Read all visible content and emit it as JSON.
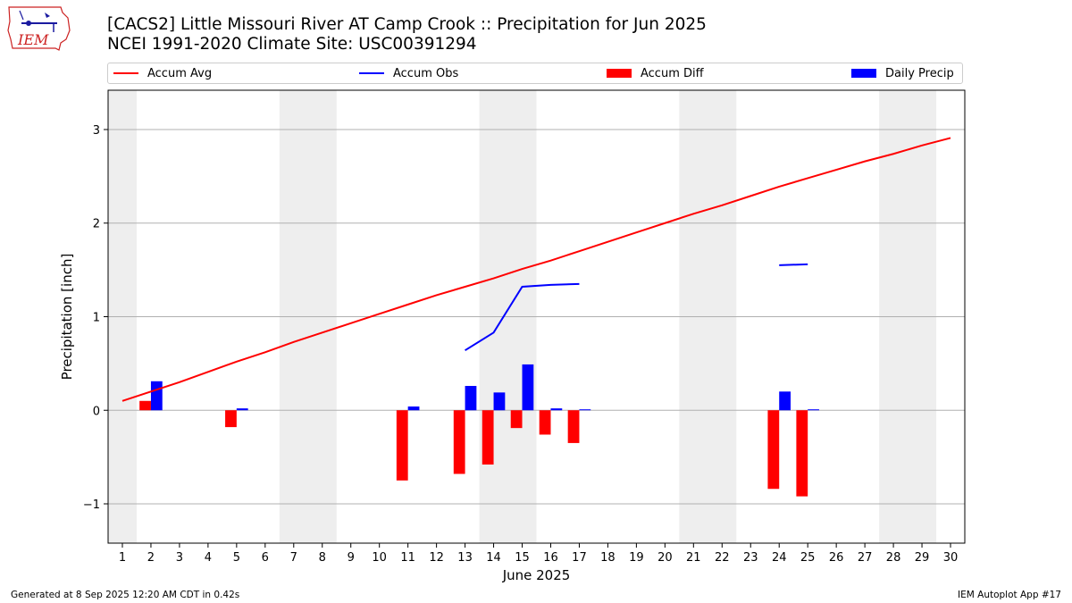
{
  "title_line1": "[CACS2] Little Missouri River  AT Camp Crook :: Precipitation for Jun 2025",
  "title_line2": "NCEI 1991-2020 Climate Site: USC00391294",
  "logo_text": "IEM",
  "legend": {
    "accum_avg": "Accum Avg",
    "accum_obs": "Accum Obs",
    "accum_diff": "Accum Diff",
    "daily_precip": "Daily Precip"
  },
  "footer": {
    "left": "Generated at 8 Sep 2025 12:20 AM CDT in 0.42s",
    "right": "IEM Autoplot App #17"
  },
  "colors": {
    "accum_avg": "#ff0000",
    "accum_obs": "#0000ff",
    "accum_diff": "#ff0000",
    "daily_precip": "#0000ff",
    "weekend_shade": "#eeeeee",
    "grid": "#b0b0b0"
  },
  "chart_data": {
    "type": "bar",
    "xlabel": "June 2025",
    "ylabel": "Precipitation [inch]",
    "xlim": [
      0.5,
      30.5
    ],
    "ylim": [
      -1.42,
      3.42
    ],
    "yticks": [
      -1,
      0,
      1,
      2,
      3
    ],
    "ytick_labels": [
      "−1",
      "0",
      "1",
      "2",
      "3"
    ],
    "grid": "horizontal",
    "legend_position": "top",
    "days": [
      1,
      2,
      3,
      4,
      5,
      6,
      7,
      8,
      9,
      10,
      11,
      12,
      13,
      14,
      15,
      16,
      17,
      18,
      19,
      20,
      21,
      22,
      23,
      24,
      25,
      26,
      27,
      28,
      29,
      30
    ],
    "weekend_spans": [
      [
        0.5,
        1.5
      ],
      [
        6.5,
        8.5
      ],
      [
        13.5,
        15.5
      ],
      [
        20.5,
        22.5
      ],
      [
        27.5,
        29.5
      ]
    ],
    "series": [
      {
        "name": "Accum Avg",
        "kind": "line",
        "values": [
          0.1,
          0.2,
          0.3,
          0.41,
          0.52,
          0.62,
          0.73,
          0.83,
          0.93,
          1.03,
          1.13,
          1.23,
          1.32,
          1.41,
          1.51,
          1.6,
          1.7,
          1.8,
          1.9,
          2.0,
          2.1,
          2.19,
          2.29,
          2.39,
          2.48,
          2.57,
          2.66,
          2.74,
          2.83,
          2.91
        ]
      },
      {
        "name": "Accum Obs",
        "kind": "line",
        "values": [
          null,
          null,
          null,
          null,
          null,
          null,
          null,
          null,
          null,
          null,
          null,
          null,
          0.64,
          0.83,
          1.32,
          1.34,
          1.35,
          null,
          null,
          null,
          null,
          null,
          null,
          1.55,
          1.56,
          null,
          null,
          null,
          null,
          null
        ]
      },
      {
        "name": "Accum Diff",
        "kind": "bar",
        "values": [
          null,
          0.1,
          null,
          null,
          -0.18,
          null,
          null,
          null,
          null,
          null,
          -0.75,
          null,
          -0.68,
          -0.58,
          -0.19,
          -0.26,
          -0.35,
          null,
          null,
          null,
          null,
          null,
          null,
          -0.84,
          -0.92,
          null,
          null,
          null,
          null,
          null
        ]
      },
      {
        "name": "Daily Precip",
        "kind": "bar",
        "values": [
          null,
          0.31,
          null,
          null,
          0.02,
          null,
          null,
          null,
          null,
          null,
          0.04,
          null,
          0.26,
          0.19,
          0.49,
          0.02,
          0.01,
          null,
          null,
          null,
          null,
          null,
          null,
          0.2,
          0.01,
          null,
          null,
          null,
          null,
          null
        ]
      }
    ]
  }
}
